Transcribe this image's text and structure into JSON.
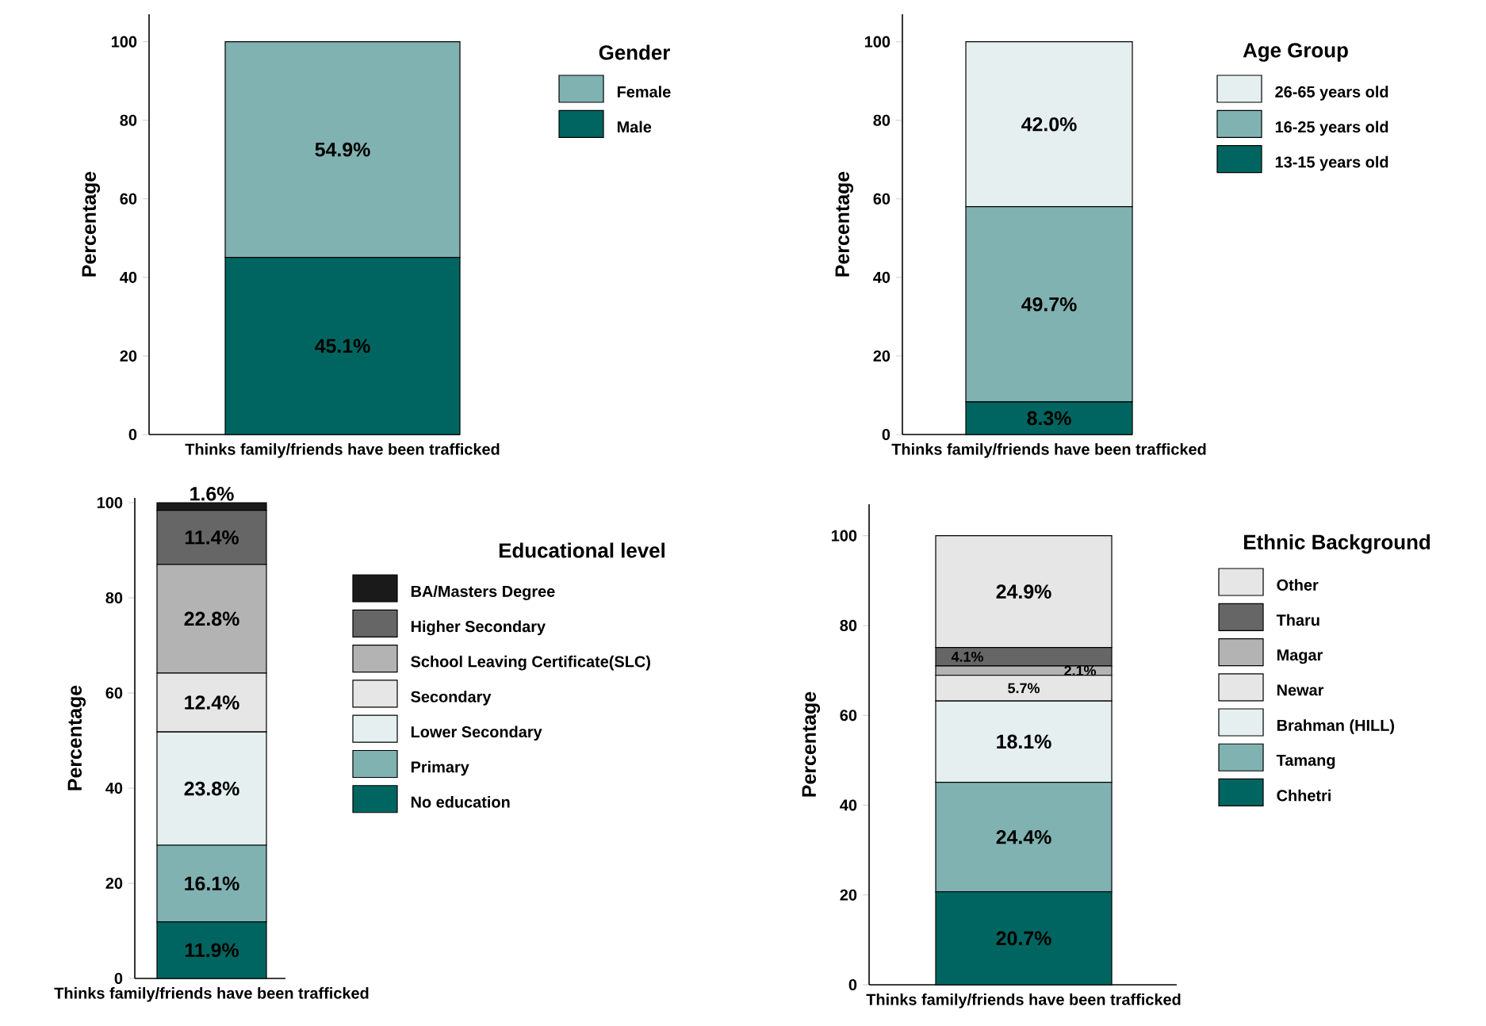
{
  "chart_data": [
    {
      "type": "bar",
      "stacked": true,
      "categories": [
        "Thinks family/friends have been trafficked"
      ],
      "ylabel": "Percentage",
      "legend_title": "Gender",
      "ylim": [
        0,
        107
      ],
      "yticks": [
        0,
        20,
        40,
        60,
        80,
        100
      ],
      "legend": "right",
      "series": [
        {
          "name": "Male",
          "color": "#006560",
          "values": [
            45.1
          ],
          "value_labels": [
            "45.1%"
          ]
        },
        {
          "name": "Female",
          "color": "#80b2b1",
          "values": [
            54.9
          ],
          "value_labels": [
            "54.9%"
          ]
        }
      ]
    },
    {
      "type": "bar",
      "stacked": true,
      "categories": [
        "Thinks family/friends have been trafficked"
      ],
      "ylabel": "Percentage",
      "legend_title": "Age Group",
      "ylim": [
        0,
        107
      ],
      "yticks": [
        0,
        20,
        40,
        60,
        80,
        100
      ],
      "legend": "right",
      "series": [
        {
          "name": "13-15 years old",
          "color": "#006560",
          "values": [
            8.3
          ],
          "value_labels": [
            "8.3%"
          ]
        },
        {
          "name": "16-25 years old",
          "color": "#80b2b1",
          "values": [
            49.7
          ],
          "value_labels": [
            "49.7%"
          ]
        },
        {
          "name": "26-65 years old",
          "color": "#e6efef",
          "values": [
            42.0
          ],
          "value_labels": [
            "42.0%"
          ]
        }
      ]
    },
    {
      "type": "bar",
      "stacked": true,
      "categories": [
        "Thinks family/friends have been trafficked"
      ],
      "ylabel": "Percentage",
      "legend_title": "Educational level",
      "ylim": [
        0,
        101
      ],
      "yticks": [
        0,
        20,
        40,
        60,
        80,
        100
      ],
      "legend": "right",
      "series": [
        {
          "name": "No education",
          "color": "#006560",
          "values": [
            11.9
          ],
          "value_labels": [
            "11.9%"
          ]
        },
        {
          "name": "Primary",
          "color": "#80b2b1",
          "values": [
            16.1
          ],
          "value_labels": [
            "16.1%"
          ]
        },
        {
          "name": "Lower Secondary",
          "color": "#e6efef",
          "values": [
            23.8
          ],
          "value_labels": [
            "23.8%"
          ]
        },
        {
          "name": "Secondary",
          "color": "#e6e6e6",
          "values": [
            12.4
          ],
          "value_labels": [
            "12.4%"
          ]
        },
        {
          "name": "School Leaving Certificate(SLC)",
          "color": "#b3b3b3",
          "values": [
            22.8
          ],
          "value_labels": [
            "22.8%"
          ]
        },
        {
          "name": "Higher Secondary",
          "color": "#666666",
          "values": [
            11.4
          ],
          "value_labels": [
            "11.4%"
          ]
        },
        {
          "name": "BA/Masters Degree",
          "color": "#1a1a1a",
          "values": [
            1.6
          ],
          "value_labels": [
            "1.6%"
          ]
        }
      ]
    },
    {
      "type": "bar",
      "stacked": true,
      "categories": [
        "Thinks family/friends have been trafficked"
      ],
      "ylabel": "Percentage",
      "legend_title": "Ethnic Background",
      "ylim": [
        0,
        107
      ],
      "yticks": [
        0,
        20,
        40,
        60,
        80,
        100
      ],
      "legend": "right",
      "series": [
        {
          "name": "Chhetri",
          "color": "#006560",
          "values": [
            20.7
          ],
          "value_labels": [
            "20.7%"
          ]
        },
        {
          "name": "Tamang",
          "color": "#80b2b1",
          "values": [
            24.4
          ],
          "value_labels": [
            "24.4%"
          ]
        },
        {
          "name": "Brahman (HILL)",
          "color": "#e6efef",
          "values": [
            18.1
          ],
          "value_labels": [
            "18.1%"
          ]
        },
        {
          "name": "Newar",
          "color": "#e6e6e6",
          "values": [
            5.7
          ],
          "value_labels": [
            "5.7%"
          ]
        },
        {
          "name": "Magar",
          "color": "#b3b3b3",
          "values": [
            2.1
          ],
          "value_labels": [
            "2.1%"
          ]
        },
        {
          "name": "Tharu",
          "color": "#666666",
          "values": [
            4.1
          ],
          "value_labels": [
            "4.1%"
          ]
        },
        {
          "name": "Other",
          "color": "#e6e6e6",
          "values": [
            24.9
          ],
          "value_labels": [
            "24.9%"
          ]
        }
      ]
    }
  ]
}
